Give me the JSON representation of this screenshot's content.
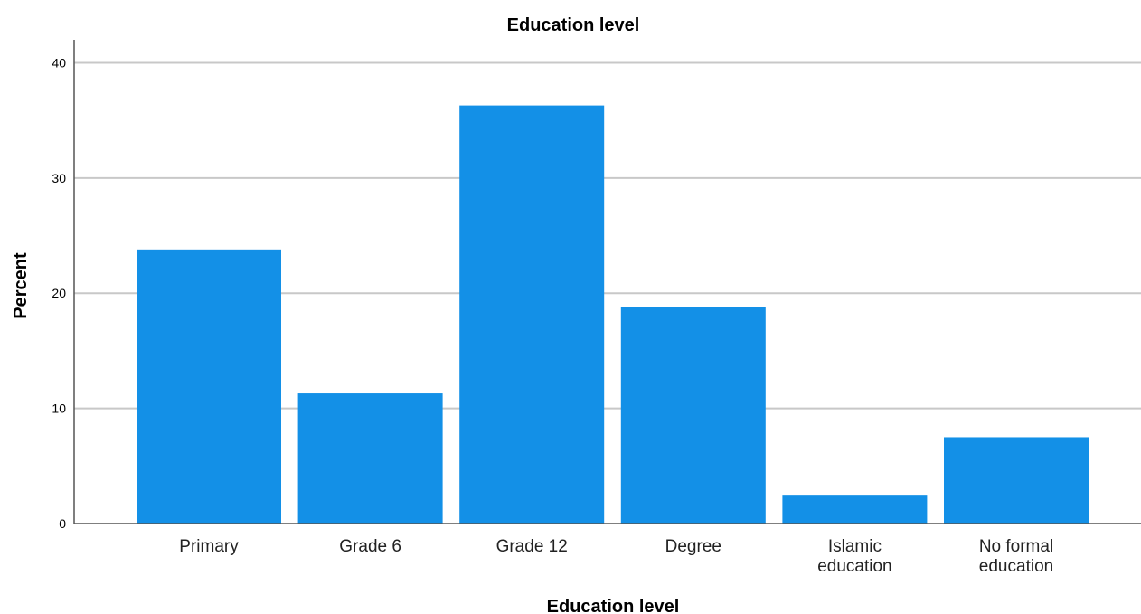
{
  "chart_data": {
    "type": "bar",
    "title": "Education level",
    "xlabel": "Education level",
    "ylabel": "Percent",
    "ylim": [
      0,
      42
    ],
    "yticks": [
      0,
      10,
      20,
      30,
      40
    ],
    "grid": true,
    "legend": "none",
    "categories": [
      [
        "Primary"
      ],
      [
        "Grade 6"
      ],
      [
        "Grade 12"
      ],
      [
        "Degree"
      ],
      [
        "Islamic",
        "education"
      ],
      [
        "No formal",
        "education"
      ]
    ],
    "values": [
      23.8,
      11.3,
      36.3,
      18.8,
      2.5,
      7.5
    ],
    "colors": {
      "bar": "#1390e7",
      "grid": "#c8c8c8",
      "axis": "#555555"
    }
  }
}
